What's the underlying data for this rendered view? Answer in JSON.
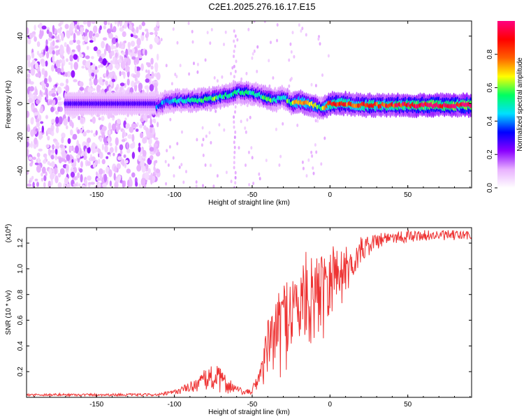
{
  "title": "C2E1.2025.276.16.17.E15",
  "chart_data": [
    {
      "type": "heatmap",
      "title": "C2E1.2025.276.16.17.E15",
      "xlabel": "Height of straight line (km)",
      "ylabel": "Frequency (Hz)",
      "xlim": [
        -195,
        91
      ],
      "ylim": [
        -50,
        49
      ],
      "xticks": [
        -150,
        -100,
        -50,
        0,
        50
      ],
      "xtick_labels": [
        "-150",
        "-100",
        "-50",
        "0",
        "50"
      ],
      "yticks": [
        -40,
        -20,
        0,
        20,
        40
      ],
      "ytick_labels": [
        "-40",
        "-20",
        "0",
        "20",
        "40"
      ],
      "colorbar": {
        "label": "Normalized spectral amplitude",
        "range": [
          0,
          1
        ],
        "ticks": [
          0.0,
          0.2,
          0.4,
          0.6,
          0.8
        ],
        "tick_labels": [
          "0.0",
          "0.2",
          "0.4",
          "0.6",
          "0.8"
        ],
        "colors": [
          "#ffffff",
          "#e8b0ff",
          "#8a00ff",
          "#0000ff",
          "#00e0ff",
          "#00ff60",
          "#ffff00",
          "#ff6000",
          "#ff0000",
          "#ff0080"
        ]
      },
      "ridge": {
        "description_values": "frequency centre (Hz) along height",
        "x": [
          -112,
          -105,
          -95,
          -85,
          -75,
          -65,
          -58,
          -50,
          -45,
          -40,
          -35,
          -30,
          -25,
          -20,
          -15,
          -10,
          -5,
          0,
          5,
          10,
          20,
          30,
          40,
          50,
          60,
          70,
          80,
          90
        ],
        "freq": [
          -2,
          1,
          2,
          2,
          3,
          5,
          7,
          6,
          5,
          3,
          2,
          4,
          0,
          1,
          0,
          -1,
          -3,
          0,
          0,
          0,
          -1,
          -1,
          -1,
          -1,
          -1,
          -1,
          -1,
          -1
        ],
        "amplitude": [
          0.35,
          0.4,
          0.45,
          0.5,
          0.55,
          0.45,
          0.5,
          0.45,
          0.5,
          0.55,
          0.5,
          0.45,
          0.6,
          0.75,
          0.7,
          0.6,
          0.55,
          0.8,
          0.85,
          0.85,
          0.8,
          0.8,
          0.85,
          0.9,
          0.95,
          0.95,
          0.95,
          0.95
        ]
      }
    },
    {
      "type": "line",
      "xlabel": "Height of straight line (km)",
      "ylabel": "SNR (10 * v/v)",
      "y_scale_note": "(x10",
      "y_scale_exp": "4",
      "y_scale_close": ")",
      "xlim": [
        -195,
        91
      ],
      "ylim": [
        0,
        1.32
      ],
      "xticks": [
        -150,
        -100,
        -50,
        0,
        50
      ],
      "xtick_labels": [
        "-150",
        "-100",
        "-50",
        "0",
        "50"
      ],
      "yticks": [
        0.2,
        0.4,
        0.6,
        0.8,
        1.0,
        1.2
      ],
      "ytick_labels": [
        "0.2",
        "0.4",
        "0.6",
        "0.8",
        "1.0",
        "1.2"
      ],
      "series": [
        {
          "name": "SNR",
          "color": "#ee3333",
          "envelope_x": [
            -195,
            -150,
            -110,
            -100,
            -90,
            -80,
            -75,
            -60,
            -55,
            -50,
            -45,
            -40,
            -35,
            -30,
            -25,
            -20,
            -15,
            -10,
            -5,
            0,
            5,
            10,
            15,
            20,
            25,
            30,
            35,
            40,
            50,
            60,
            70,
            80,
            91
          ],
          "envelope_low": [
            0.01,
            0.01,
            0.01,
            0.02,
            0.04,
            0.05,
            0.04,
            0.02,
            0.02,
            0.02,
            0.04,
            0.08,
            0.1,
            0.15,
            0.2,
            0.25,
            0.3,
            0.35,
            0.4,
            0.5,
            0.6,
            0.75,
            0.9,
            1.0,
            1.1,
            1.15,
            1.18,
            1.2,
            1.2,
            1.22,
            1.22,
            1.22,
            1.22
          ],
          "envelope_high": [
            0.03,
            0.03,
            0.03,
            0.06,
            0.12,
            0.22,
            0.28,
            0.1,
            0.05,
            0.08,
            0.25,
            0.6,
            0.75,
            0.9,
            1.0,
            0.95,
            1.15,
            1.05,
            1.2,
            1.28,
            1.15,
            1.18,
            1.12,
            1.25,
            1.25,
            1.28,
            1.3,
            1.3,
            1.3,
            1.3,
            1.3,
            1.3,
            1.3
          ]
        }
      ]
    }
  ]
}
